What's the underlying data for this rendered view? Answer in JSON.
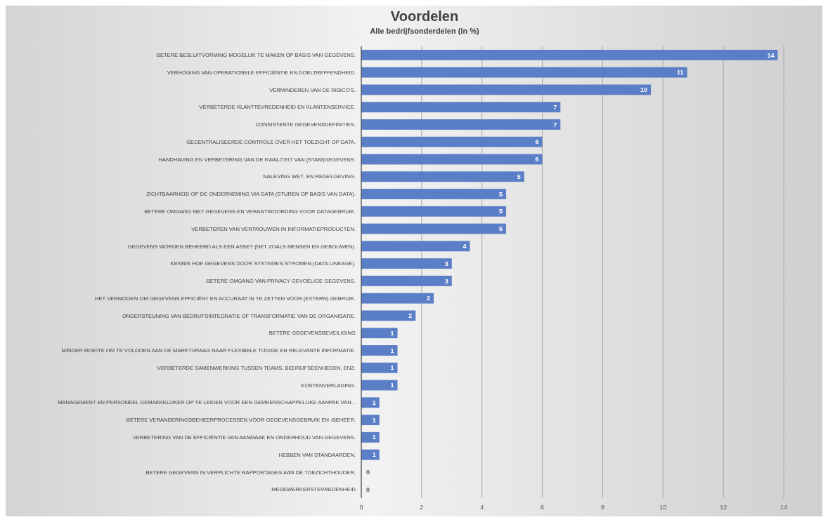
{
  "chart_data": {
    "type": "bar",
    "orientation": "horizontal",
    "title": "Voordelen",
    "subtitle": "Alle bedrijfsonderdelen (in %)",
    "categories": [
      "BETERE BESLUITVORMING MOGELIJK TE MAKEN OP BASIS VAN GEGEVENS.",
      "VERHOGING VAN OPERATIONELE EFFICIËNTIE EN DOELTREFFENDHEID.",
      "VERMINDEREN VAN DE RISICO'S.",
      "VERBETERDE KLANTTEVREDENHEID EN KLANTENSERVICE.",
      "CONSISTENTE GEGEVENSDEFINITIES.",
      "GECENTRALISEERDE CONTROLE OVER HET TOEZICHT OP DATA.",
      "HANDHAVING EN VERBETERING VAN DE KWALITEIT VAN (STAM)GEGEVENS.",
      "NALEVING WET- EN REGELGEVING.",
      "ZICHTBAARHEID OP DE ONDERNEMING VIA DATA (STUREN OP BASIS VAN DATA).",
      "BETERE OMGANG MET GEGEVENS EN VERANTWOORDING VOOR DATAGEBRUIK.",
      "VERBETEREN VAN VERTROUWEN IN INFORMATIEPRODUCTEN.",
      "GEGEVENS WORDEN BEHEERD ALS EEN ASSET (NET ZOALS MENSEN EN GEBOUWEN).",
      "KENNIS HOE GEGEVENS DOOR SYSTEMEN STROMEN (DATA LINEAGE).",
      "BETERE OMGANG VAN PRIVACY GEVOELIGE GEGEVENS.",
      "HET VERMOGEN OM GEGEVENS EFFICIËNT EN ACCURAAT IN TE ZETTEN VOOR (EXTERN) GEBRUIK.",
      "ONDERSTEUNING VAN BEDRIJFSINTEGRATIE OF TRANSFORMATIE VAN DE ORGANISATIE.",
      "BETERE GEGEVENSBEVEILIGING",
      "MINDER MOEITE OM TE VOLDOEN AAN DE MARKTVRAAG NAAR FLEXIBELE TIJDIGE EN RELEVANTE INFORMATIE.",
      "VERBETERDE SAMENWERKING TUSSEN TEAMS, BEDRIJFSEENHEDEN, ENZ.",
      "KOSTENVERLAGING.",
      "MANAGEMENT EN PERSONEEL GEMAKKELIJKER OP TE LEIDEN VOOR EEN GEMEENSCHAPPELIJKE AANPAK VAN...",
      "BETERE VERANDERINGSBEHEERPROCESSEN VOOR GEGEVENSGEBRUIK EN -BEHEER.",
      "VERBETERING VAN DE EFFICIËNTIE VAN AANMAAK EN ONDERHOUD VAN GEGEVENS.",
      "HEBBEN VAN STANDAARDEN.",
      "BETERE GEGEVENS IN VERPLICHTE RAPPORTAGES AAN DE TOEZICHTHOUDER.",
      "MEDEWERKERSTEVREDENHEID"
    ],
    "values": [
      13.8,
      10.8,
      9.6,
      6.6,
      6.6,
      6.0,
      6.0,
      5.4,
      4.8,
      4.8,
      4.8,
      3.6,
      3.0,
      3.0,
      2.4,
      1.8,
      1.2,
      1.2,
      1.2,
      1.2,
      0.6,
      0.6,
      0.6,
      0.6,
      0,
      0
    ],
    "value_labels": [
      "14",
      "11",
      "10",
      "7",
      "7",
      "6",
      "6",
      "5",
      "5",
      "5",
      "5",
      "4",
      "3",
      "3",
      "2",
      "2",
      "1",
      "1",
      "1",
      "1",
      "1",
      "1",
      "1",
      "1",
      "0",
      "0"
    ],
    "color": "#5b7fc7",
    "xlim": [
      0,
      14
    ],
    "xticks": [
      0,
      2,
      4,
      6,
      8,
      10,
      12,
      14
    ],
    "grid": "x"
  }
}
